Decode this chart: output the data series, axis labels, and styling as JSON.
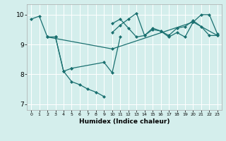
{
  "xlabel": "Humidex (Indice chaleur)",
  "bg_color": "#d4eeec",
  "line_color": "#1a7070",
  "grid_color": "#ffffff",
  "xlim": [
    -0.5,
    23.5
  ],
  "ylim": [
    6.8,
    10.35
  ],
  "yticks": [
    7,
    8,
    9,
    10
  ],
  "xticks": [
    0,
    1,
    2,
    3,
    4,
    5,
    6,
    7,
    8,
    9,
    10,
    11,
    12,
    13,
    14,
    15,
    16,
    17,
    18,
    19,
    20,
    21,
    22,
    23
  ],
  "series": [
    {
      "x": [
        0,
        1,
        2,
        3
      ],
      "y": [
        9.85,
        9.95,
        9.25,
        9.25
      ]
    },
    {
      "x": [
        3,
        4,
        5,
        6,
        7,
        8,
        9
      ],
      "y": [
        9.25,
        8.1,
        7.75,
        7.65,
        7.5,
        7.4,
        7.25
      ]
    },
    {
      "x": [
        2,
        3,
        4,
        5
      ],
      "y": [
        9.25,
        9.25,
        8.1,
        8.2
      ]
    },
    {
      "x": [
        5,
        9,
        10,
        11
      ],
      "y": [
        8.2,
        8.4,
        8.05,
        9.25
      ]
    },
    {
      "x": [
        10,
        11,
        12,
        13,
        14,
        15,
        16,
        17,
        18,
        19,
        20,
        21,
        22,
        23
      ],
      "y": [
        9.7,
        9.85,
        9.55,
        9.25,
        9.3,
        9.5,
        9.45,
        9.25,
        9.4,
        9.25,
        9.75,
        10.0,
        10.0,
        9.35
      ]
    },
    {
      "x": [
        10,
        11,
        12,
        13,
        14,
        15,
        16,
        17,
        18,
        19,
        20,
        21,
        22,
        23
      ],
      "y": [
        9.4,
        9.65,
        9.85,
        10.05,
        9.3,
        9.55,
        9.45,
        9.3,
        9.55,
        9.6,
        9.8,
        9.6,
        9.3,
        9.3
      ]
    },
    {
      "x": [
        2,
        10,
        20,
        23
      ],
      "y": [
        9.25,
        8.85,
        9.75,
        9.3
      ]
    }
  ]
}
